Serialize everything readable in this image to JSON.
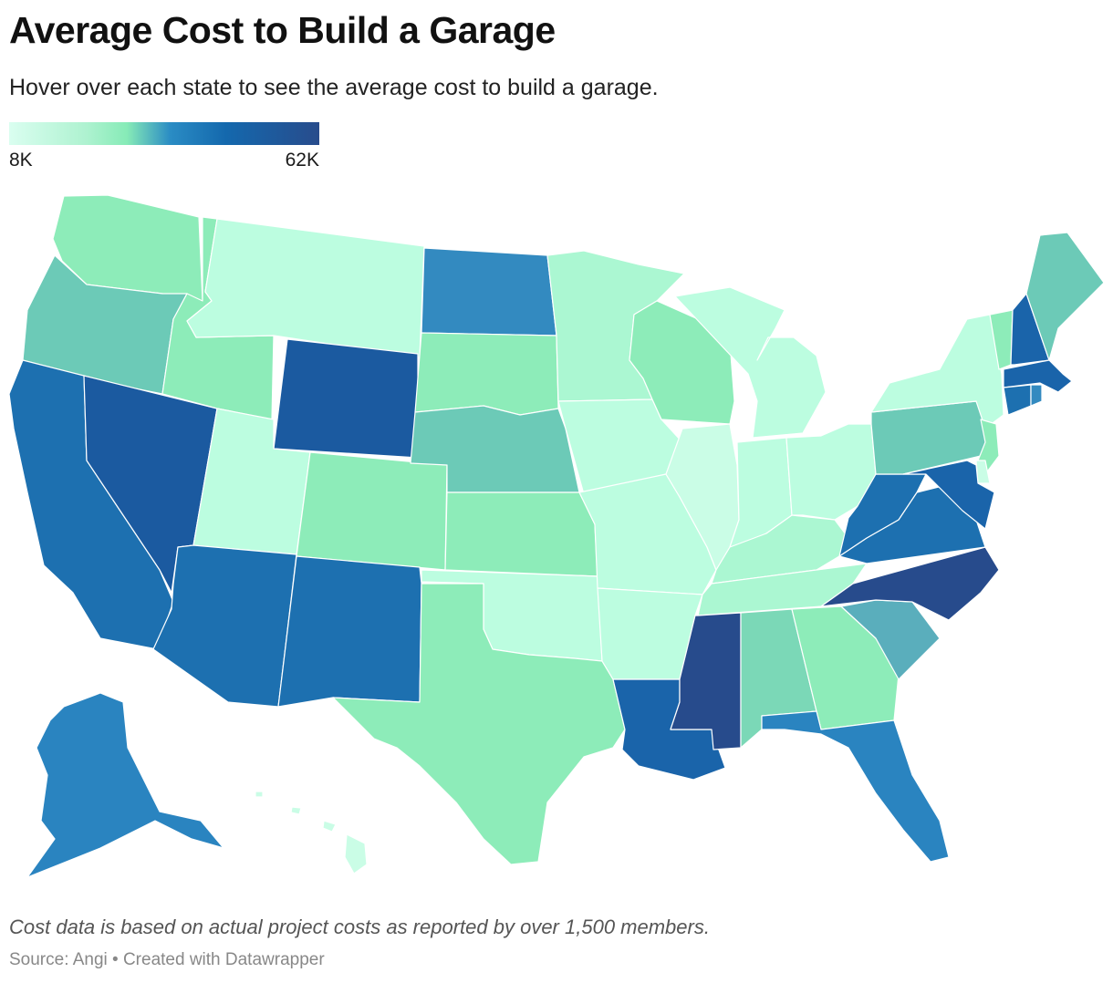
{
  "header": {
    "title": "Average Cost to Build a Garage",
    "subtitle": "Hover over each state to see the average cost to build a garage."
  },
  "legend": {
    "min_label": "8K",
    "max_label": "62K",
    "colors": [
      "#dafef0",
      "#aef2d0",
      "#86ebb7",
      "#2a8cc4",
      "#1468ad",
      "#284c8c"
    ]
  },
  "map": {
    "states": [
      {
        "id": "WA",
        "color": "#8decb9"
      },
      {
        "id": "OR",
        "color": "#6ccab7"
      },
      {
        "id": "CA",
        "color": "#1d70b0"
      },
      {
        "id": "NV",
        "color": "#1b5aa0"
      },
      {
        "id": "ID",
        "color": "#8decb9"
      },
      {
        "id": "MT",
        "color": "#bcfde0"
      },
      {
        "id": "WY",
        "color": "#1b5aa0"
      },
      {
        "id": "UT",
        "color": "#bcfde0"
      },
      {
        "id": "AZ",
        "color": "#1d70b0"
      },
      {
        "id": "CO",
        "color": "#8decb9"
      },
      {
        "id": "NM",
        "color": "#1d70b0"
      },
      {
        "id": "ND",
        "color": "#338ac0"
      },
      {
        "id": "SD",
        "color": "#8decb9"
      },
      {
        "id": "NE",
        "color": "#6ccab7"
      },
      {
        "id": "KS",
        "color": "#8decb9"
      },
      {
        "id": "OK",
        "color": "#bcfde0"
      },
      {
        "id": "TX",
        "color": "#8decb9"
      },
      {
        "id": "MN",
        "color": "#abf7d2"
      },
      {
        "id": "IA",
        "color": "#bcfde0"
      },
      {
        "id": "MO",
        "color": "#bcfde0"
      },
      {
        "id": "AR",
        "color": "#bcfde0"
      },
      {
        "id": "LA",
        "color": "#1a64aa"
      },
      {
        "id": "WI",
        "color": "#8decb9"
      },
      {
        "id": "IL",
        "color": "#cafde6"
      },
      {
        "id": "MI",
        "color": "#bcfde0"
      },
      {
        "id": "IN",
        "color": "#bcfde0"
      },
      {
        "id": "OH",
        "color": "#bcfde0"
      },
      {
        "id": "KY",
        "color": "#abf7d2"
      },
      {
        "id": "TN",
        "color": "#abf7d2"
      },
      {
        "id": "MS",
        "color": "#274b8c"
      },
      {
        "id": "AL",
        "color": "#7bd8b7"
      },
      {
        "id": "GA",
        "color": "#8decb9"
      },
      {
        "id": "FL",
        "color": "#2a84c0"
      },
      {
        "id": "SC",
        "color": "#5aaebc"
      },
      {
        "id": "NC",
        "color": "#274b8c"
      },
      {
        "id": "VA",
        "color": "#1d70b0"
      },
      {
        "id": "WV",
        "color": "#1d70b0"
      },
      {
        "id": "PA",
        "color": "#6ccab7"
      },
      {
        "id": "NY",
        "color": "#bcfde0"
      },
      {
        "id": "VT",
        "color": "#8decb9"
      },
      {
        "id": "NH",
        "color": "#1a64aa"
      },
      {
        "id": "ME",
        "color": "#6ccab7"
      },
      {
        "id": "MA",
        "color": "#1a64aa"
      },
      {
        "id": "CT",
        "color": "#1d70b0"
      },
      {
        "id": "RI",
        "color": "#338ac0"
      },
      {
        "id": "NJ",
        "color": "#8decb9"
      },
      {
        "id": "DE",
        "color": "#cafde6"
      },
      {
        "id": "MD",
        "color": "#1a64aa"
      },
      {
        "id": "AK",
        "color": "#2a84c0"
      },
      {
        "id": "HI",
        "color": "#cafde6"
      }
    ]
  },
  "footer": {
    "note": "Cost data is based on actual project costs as reported by over 1,500 members.",
    "source": "Source: Angi • Created with Datawrapper"
  }
}
